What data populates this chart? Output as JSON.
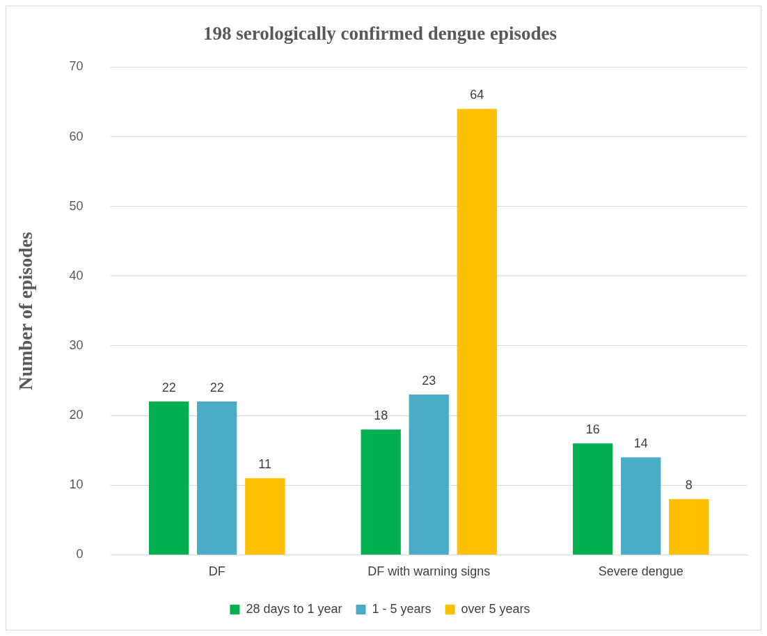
{
  "chart_data": {
    "type": "bar",
    "title": "198 serologically confirmed dengue episodes",
    "ylabel": "Number of episodes",
    "categories": [
      "DF",
      "DF with warning signs",
      "Severe dengue"
    ],
    "series": [
      {
        "name": "28 days to 1 year",
        "color": "#00b050",
        "values": [
          22,
          18,
          16
        ]
      },
      {
        "name": "1 - 5 years",
        "color": "#4bacc6",
        "values": [
          22,
          23,
          14
        ]
      },
      {
        "name": "over 5 years",
        "color": "#ffc000",
        "values": [
          11,
          64,
          8
        ]
      }
    ],
    "ylim": [
      0,
      70
    ],
    "yticks": [
      0,
      10,
      20,
      30,
      40,
      50,
      60,
      70
    ],
    "grid": "y",
    "legend": "bottom",
    "data_labels": true
  }
}
